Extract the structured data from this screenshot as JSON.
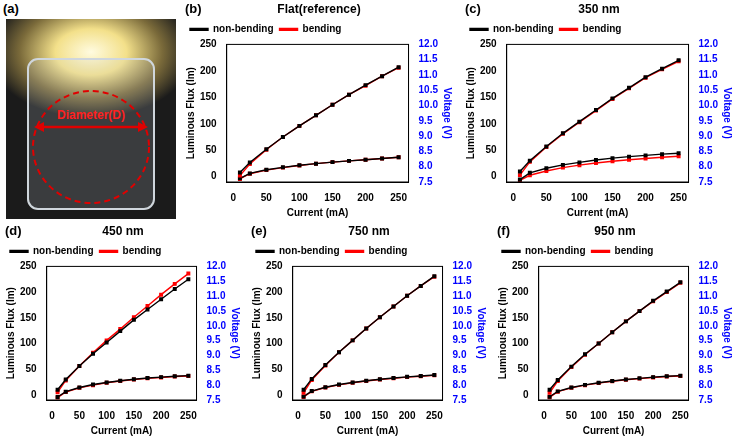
{
  "image_panel": {
    "label": "(a)",
    "text": "Diameter(D)"
  },
  "chart_data": [
    {
      "label": "(b)",
      "type": "line",
      "title": "Flat(reference)",
      "x_label": "Current (mA)",
      "y_label": "Luminous Flux (lm)",
      "y2_label": "Voltage (V)",
      "x": [
        10,
        25,
        50,
        75,
        100,
        125,
        150,
        175,
        200,
        225,
        250
      ],
      "xlim": [
        -10,
        265
      ],
      "xticks": [
        0,
        50,
        100,
        150,
        200,
        250
      ],
      "ylim": [
        -10,
        250
      ],
      "yticks": [
        0,
        50,
        100,
        150,
        200,
        250
      ],
      "y2lim": [
        7.5,
        12.0
      ],
      "y2ticks": [
        7.5,
        {
          "value": 8,
          "label": "8.0"
        },
        8.5,
        {
          "value": 9,
          "label": "9.0"
        },
        9.5,
        {
          "value": 10,
          "label": "10.0"
        },
        10.5,
        {
          "value": 11,
          "label": "11.0"
        },
        11.5,
        {
          "value": 12,
          "label": "12.0"
        }
      ],
      "grid": false,
      "legend": "top",
      "series": [
        {
          "name": "non-bending",
          "color": "#000000",
          "marker": "square",
          "values": [
            8,
            27,
            52,
            75,
            96,
            116,
            136,
            155,
            173,
            190,
            207
          ]
        },
        {
          "name": "bending",
          "color": "#ff0000",
          "marker": "square",
          "values": [
            2,
            24,
            51,
            75,
            96,
            116,
            136,
            155,
            172,
            190,
            206
          ]
        },
        {
          "name": "non-bending",
          "color": "#000000",
          "marker": "square",
          "axis": "y2",
          "values": [
            7.62,
            7.78,
            7.9,
            7.98,
            8.05,
            8.1,
            8.15,
            8.19,
            8.23,
            8.27,
            8.31
          ]
        },
        {
          "name": "bending",
          "color": "#ff0000",
          "marker": "square",
          "axis": "y2",
          "values": [
            7.6,
            7.77,
            7.89,
            7.97,
            8.04,
            8.1,
            8.15,
            8.19,
            8.23,
            8.27,
            8.31
          ]
        }
      ]
    },
    {
      "label": "(c)",
      "type": "line",
      "title": "350 nm",
      "x_label": "Current (mA)",
      "y_label": "Luminous Flux (lm)",
      "y2_label": "Voltage (V)",
      "x": [
        10,
        25,
        50,
        75,
        100,
        125,
        150,
        175,
        200,
        225,
        250
      ],
      "xlim": [
        -10,
        265
      ],
      "xticks": [
        0,
        50,
        100,
        150,
        200,
        250
      ],
      "ylim": [
        -10,
        250
      ],
      "yticks": [
        0,
        50,
        100,
        150,
        200,
        250
      ],
      "y2lim": [
        7.5,
        12.0
      ],
      "y2ticks": [
        7.5,
        {
          "value": 8,
          "label": "8.0"
        },
        8.5,
        {
          "value": 9,
          "label": "9.0"
        },
        9.5,
        {
          "value": 10,
          "label": "10.0"
        },
        10.5,
        {
          "value": 11,
          "label": "11.0"
        },
        11.5,
        {
          "value": 12,
          "label": "12.0"
        }
      ],
      "grid": false,
      "legend": "top",
      "series": [
        {
          "name": "non-bending",
          "color": "#000000",
          "marker": "square",
          "values": [
            10,
            30,
            57,
            82,
            104,
            126,
            148,
            168,
            188,
            204,
            220
          ]
        },
        {
          "name": "bending",
          "color": "#ff0000",
          "marker": "square",
          "values": [
            3,
            28,
            56,
            81,
            103,
            125,
            147,
            167,
            187,
            203,
            218
          ]
        },
        {
          "name": "non-bending",
          "color": "#000000",
          "marker": "square",
          "axis": "y2",
          "values": [
            7.58,
            7.8,
            7.95,
            8.06,
            8.14,
            8.22,
            8.28,
            8.33,
            8.37,
            8.41,
            8.44
          ]
        },
        {
          "name": "bending",
          "color": "#ff0000",
          "marker": "square",
          "axis": "y2",
          "values": [
            7.55,
            7.72,
            7.86,
            7.97,
            8.05,
            8.12,
            8.18,
            8.23,
            8.27,
            8.31,
            8.34
          ]
        }
      ]
    },
    {
      "label": "(d)",
      "type": "line",
      "title": "450 nm",
      "x_label": "Current (mA)",
      "y_label": "Luminous Flux (lm)",
      "y2_label": "Voltage (V)",
      "x": [
        10,
        25,
        50,
        75,
        100,
        125,
        150,
        175,
        200,
        225,
        250
      ],
      "xlim": [
        -10,
        265
      ],
      "xticks": [
        0,
        50,
        100,
        150,
        200,
        250
      ],
      "ylim": [
        -10,
        250
      ],
      "yticks": [
        0,
        50,
        100,
        150,
        200,
        250
      ],
      "y2lim": [
        7.5,
        12.0
      ],
      "y2ticks": [
        7.5,
        {
          "value": 8,
          "label": "8.0"
        },
        8.5,
        {
          "value": 9,
          "label": "9.0"
        },
        9.5,
        {
          "value": 10,
          "label": "10.0"
        },
        10.5,
        {
          "value": 11,
          "label": "11.0"
        },
        11.5,
        {
          "value": 12,
          "label": "12.0"
        }
      ],
      "grid": false,
      "legend": "top",
      "series": [
        {
          "name": "non-bending",
          "color": "#000000",
          "marker": "square",
          "values": [
            10,
            30,
            56,
            80,
            102,
            124,
            146,
            166,
            186,
            206,
            225
          ]
        },
        {
          "name": "bending",
          "color": "#ff0000",
          "marker": "square",
          "values": [
            5,
            28,
            56,
            82,
            106,
            128,
            151,
            173,
            195,
            216,
            236
          ]
        },
        {
          "name": "non-bending",
          "color": "#000000",
          "marker": "square",
          "axis": "y2",
          "values": [
            7.6,
            7.78,
            7.92,
            8.02,
            8.09,
            8.15,
            8.2,
            8.24,
            8.27,
            8.3,
            8.32
          ]
        },
        {
          "name": "bending",
          "color": "#ff0000",
          "marker": "square",
          "axis": "y2",
          "values": [
            7.58,
            7.77,
            7.91,
            8.0,
            8.08,
            8.14,
            8.19,
            8.23,
            8.26,
            8.29,
            8.31
          ]
        }
      ]
    },
    {
      "label": "(e)",
      "type": "line",
      "title": "750 nm",
      "x_label": "Current (mA)",
      "y_label": "Luminous Flux (lm)",
      "y2_label": "Voltage (V)",
      "x": [
        10,
        25,
        50,
        75,
        100,
        125,
        150,
        175,
        200,
        225,
        250
      ],
      "xlim": [
        -10,
        265
      ],
      "xticks": [
        0,
        50,
        100,
        150,
        200,
        250
      ],
      "ylim": [
        -10,
        250
      ],
      "yticks": [
        0,
        50,
        100,
        150,
        200,
        250
      ],
      "y2lim": [
        7.5,
        12.0
      ],
      "y2ticks": [
        7.5,
        {
          "value": 8,
          "label": "8.0"
        },
        8.5,
        {
          "value": 9,
          "label": "9.0"
        },
        9.5,
        {
          "value": 10,
          "label": "10.0"
        },
        10.5,
        {
          "value": 11,
          "label": "11.0"
        },
        11.5,
        {
          "value": 12,
          "label": "12.0"
        }
      ],
      "grid": false,
      "legend": "top",
      "series": [
        {
          "name": "non-bending",
          "color": "#000000",
          "marker": "square",
          "values": [
            10,
            31,
            58,
            83,
            106,
            129,
            151,
            172,
            193,
            212,
            231
          ]
        },
        {
          "name": "bending",
          "color": "#ff0000",
          "marker": "square",
          "values": [
            4,
            29,
            57,
            83,
            106,
            129,
            151,
            172,
            193,
            212,
            230
          ]
        },
        {
          "name": "non-bending",
          "color": "#000000",
          "marker": "square",
          "axis": "y2",
          "values": [
            7.62,
            7.8,
            7.93,
            8.02,
            8.09,
            8.15,
            8.2,
            8.24,
            8.28,
            8.31,
            8.34
          ]
        },
        {
          "name": "bending",
          "color": "#ff0000",
          "marker": "square",
          "axis": "y2",
          "values": [
            7.6,
            7.79,
            7.92,
            8.01,
            8.08,
            8.14,
            8.19,
            8.23,
            8.27,
            8.3,
            8.33
          ]
        }
      ]
    },
    {
      "label": "(f)",
      "type": "line",
      "title": "950 nm",
      "x_label": "Current (mA)",
      "y_label": "Luminous Flux (lm)",
      "y2_label": "Voltage (V)",
      "x": [
        10,
        25,
        50,
        75,
        100,
        125,
        150,
        175,
        200,
        225,
        250
      ],
      "xlim": [
        -10,
        265
      ],
      "xticks": [
        0,
        50,
        100,
        150,
        200,
        250
      ],
      "ylim": [
        -10,
        250
      ],
      "yticks": [
        0,
        50,
        100,
        150,
        200,
        250
      ],
      "y2lim": [
        7.5,
        12.0
      ],
      "y2ticks": [
        7.5,
        {
          "value": 8,
          "label": "8.0"
        },
        8.5,
        {
          "value": 9,
          "label": "9.0"
        },
        9.5,
        {
          "value": 10,
          "label": "10.0"
        },
        10.5,
        {
          "value": 11,
          "label": "11.0"
        },
        11.5,
        {
          "value": 12,
          "label": "12.0"
        }
      ],
      "grid": false,
      "legend": "top",
      "series": [
        {
          "name": "non-bending",
          "color": "#000000",
          "marker": "square",
          "values": [
            10,
            29,
            55,
            79,
            100,
            122,
            143,
            163,
            183,
            201,
            219
          ]
        },
        {
          "name": "bending",
          "color": "#ff0000",
          "marker": "square",
          "values": [
            4,
            27,
            54,
            78,
            100,
            122,
            143,
            163,
            182,
            200,
            218
          ]
        },
        {
          "name": "non-bending",
          "color": "#000000",
          "marker": "square",
          "axis": "y2",
          "values": [
            7.61,
            7.79,
            7.92,
            8.01,
            8.08,
            8.14,
            8.19,
            8.23,
            8.27,
            8.3,
            8.32
          ]
        },
        {
          "name": "bending",
          "color": "#ff0000",
          "marker": "square",
          "axis": "y2",
          "values": [
            7.59,
            7.78,
            7.91,
            8.0,
            8.07,
            8.13,
            8.18,
            8.22,
            8.26,
            8.29,
            8.31
          ]
        }
      ]
    }
  ]
}
